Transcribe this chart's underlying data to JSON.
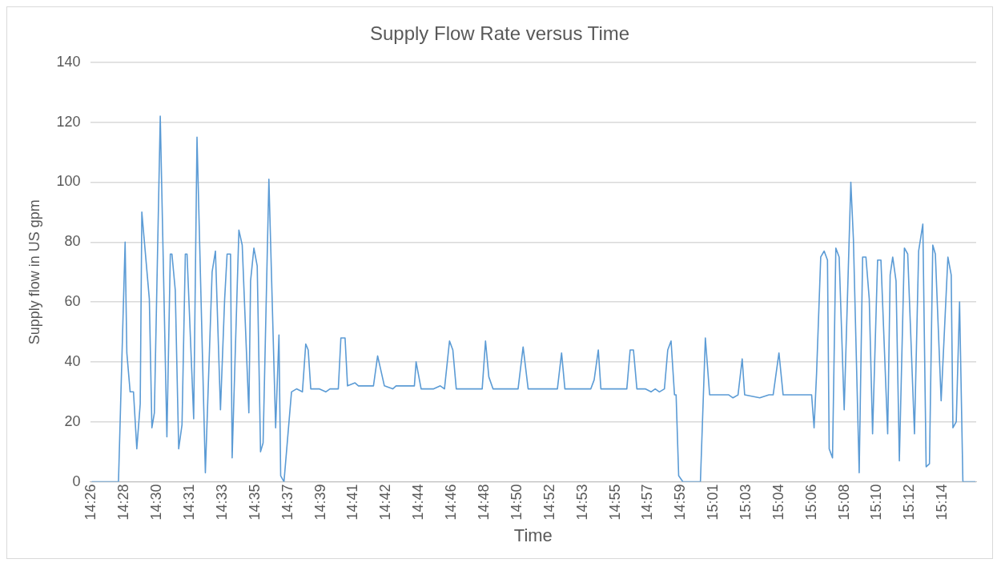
{
  "chart_data": {
    "type": "line",
    "title": "Supply Flow Rate versus Time",
    "xlabel": "Time",
    "ylabel": "Supply flow in US gpm",
    "x": [
      14.4317,
      14.4567,
      14.4629,
      14.4645,
      14.4676,
      14.4707,
      14.4738,
      14.477,
      14.4785,
      14.4855,
      14.4879,
      14.4902,
      14.4957,
      14.5019,
      14.5051,
      14.5066,
      14.5097,
      14.5129,
      14.516,
      14.5191,
      14.5207,
      14.5269,
      14.53,
      14.5378,
      14.5441,
      14.5472,
      14.5519,
      14.5558,
      14.5581,
      14.5613,
      14.5628,
      14.5691,
      14.5722,
      14.5784,
      14.58,
      14.5831,
      14.5862,
      14.5893,
      14.5917,
      14.5971,
      14.6034,
      14.6065,
      14.6081,
      14.6112,
      14.6182,
      14.6229,
      14.6284,
      14.6315,
      14.6338,
      14.6362,
      14.644,
      14.6502,
      14.6541,
      14.6619,
      14.6643,
      14.6682,
      14.6705,
      14.6775,
      14.6807,
      14.6947,
      14.6986,
      14.7049,
      14.7127,
      14.7158,
      14.7329,
      14.7345,
      14.7392,
      14.7509,
      14.7571,
      14.761,
      14.7657,
      14.7688,
      14.772,
      14.7962,
      14.7993,
      14.8024,
      14.8063,
      14.8297,
      14.8344,
      14.8391,
      14.8492,
      14.8664,
      14.8703,
      14.8734,
      14.8922,
      14.8976,
      14.9007,
      14.9046,
      14.907,
      14.9312,
      14.9343,
      14.9374,
      14.9406,
      14.9484,
      14.9538,
      14.9577,
      14.9616,
      14.9663,
      14.9694,
      14.9725,
      14.9757,
      14.9772,
      14.9796,
      14.9835,
      14.9999,
      15.0045,
      15.0085,
      15.0264,
      15.0303,
      15.035,
      15.0389,
      15.0412,
      15.0553,
      15.0639,
      15.0678,
      15.0732,
      15.0771,
      15.0888,
      15.1037,
      15.106,
      15.1083,
      15.1122,
      15.1154,
      15.1185,
      15.1201,
      15.1232,
      15.1263,
      15.1294,
      15.1341,
      15.1403,
      15.1427,
      15.1481,
      15.1513,
      15.1544,
      15.1575,
      15.1606,
      15.1653,
      15.1684,
      15.1747,
      15.177,
      15.1794,
      15.1825,
      15.1856,
      15.1903,
      15.1934,
      15.1997,
      15.2036,
      15.2075,
      15.2106,
      15.2137,
      15.2168,
      15.2192,
      15.2246,
      15.2309,
      15.234,
      15.2356,
      15.2387,
      15.2418,
      15.2449,
      15.2566
    ],
    "series": [
      {
        "color": "#5b9bd5",
        "values": [
          0,
          0,
          80,
          43,
          30,
          30,
          11,
          26,
          90,
          61,
          18,
          23,
          122,
          15,
          76,
          76,
          64,
          11,
          19,
          76,
          76,
          21,
          115,
          3,
          70,
          77,
          24,
          61,
          76,
          76,
          8,
          84,
          79,
          23,
          67,
          78,
          72,
          10,
          13,
          101,
          18,
          49,
          2,
          0,
          30,
          31,
          30,
          46,
          44,
          31,
          31,
          30,
          31,
          31,
          48,
          48,
          32,
          33,
          32,
          32,
          42,
          32,
          31,
          32,
          32,
          40,
          31,
          31,
          32,
          31,
          47,
          44,
          31,
          31,
          47,
          35,
          31,
          31,
          45,
          31,
          31,
          31,
          43,
          31,
          31,
          31,
          34,
          44,
          31,
          31,
          44,
          44,
          31,
          31,
          30,
          31,
          30,
          31,
          44,
          47,
          29,
          29,
          2,
          0,
          0,
          48,
          29,
          29,
          28,
          29,
          41,
          29,
          28,
          29,
          29,
          43,
          29,
          29,
          29,
          18,
          36,
          75,
          77,
          74,
          11,
          8,
          78,
          75,
          24,
          100,
          81,
          3,
          75,
          75,
          61,
          16,
          74,
          74,
          16,
          69,
          75,
          67,
          7,
          78,
          76,
          16,
          77,
          86,
          5,
          6,
          79,
          76,
          27,
          75,
          69,
          18,
          20,
          60,
          0,
          0
        ]
      }
    ],
    "xlim": [
      14.4303,
      15.2573
    ],
    "ylim": [
      0,
      140
    ],
    "xticks": [
      {
        "value": 14.4317,
        "label": "14:26"
      },
      {
        "value": 14.4622,
        "label": "14:28"
      },
      {
        "value": 14.4928,
        "label": "14:30"
      },
      {
        "value": 14.5233,
        "label": "14:31"
      },
      {
        "value": 14.5539,
        "label": "14:33"
      },
      {
        "value": 14.5844,
        "label": "14:35"
      },
      {
        "value": 14.615,
        "label": "14:37"
      },
      {
        "value": 14.6456,
        "label": "14:39"
      },
      {
        "value": 14.6761,
        "label": "14:41"
      },
      {
        "value": 14.7067,
        "label": "14:42"
      },
      {
        "value": 14.7372,
        "label": "14:44"
      },
      {
        "value": 14.7678,
        "label": "14:46"
      },
      {
        "value": 14.7983,
        "label": "14:48"
      },
      {
        "value": 14.8289,
        "label": "14:50"
      },
      {
        "value": 14.8594,
        "label": "14:52"
      },
      {
        "value": 14.89,
        "label": "14:53"
      },
      {
        "value": 14.9206,
        "label": "14:55"
      },
      {
        "value": 14.9511,
        "label": "14:57"
      },
      {
        "value": 14.9817,
        "label": "14:59"
      },
      {
        "value": 15.0122,
        "label": "15:01"
      },
      {
        "value": 15.0428,
        "label": "15:03"
      },
      {
        "value": 15.0733,
        "label": "15:04"
      },
      {
        "value": 15.1039,
        "label": "15:06"
      },
      {
        "value": 15.1344,
        "label": "15:08"
      },
      {
        "value": 15.165,
        "label": "15:10"
      },
      {
        "value": 15.1956,
        "label": "15:12"
      },
      {
        "value": 15.2261,
        "label": "15:14"
      }
    ],
    "yticks": [
      0,
      20,
      40,
      60,
      80,
      100,
      120,
      140
    ],
    "grid": "y",
    "legend": false,
    "marker": "none",
    "line_style": "solid"
  }
}
